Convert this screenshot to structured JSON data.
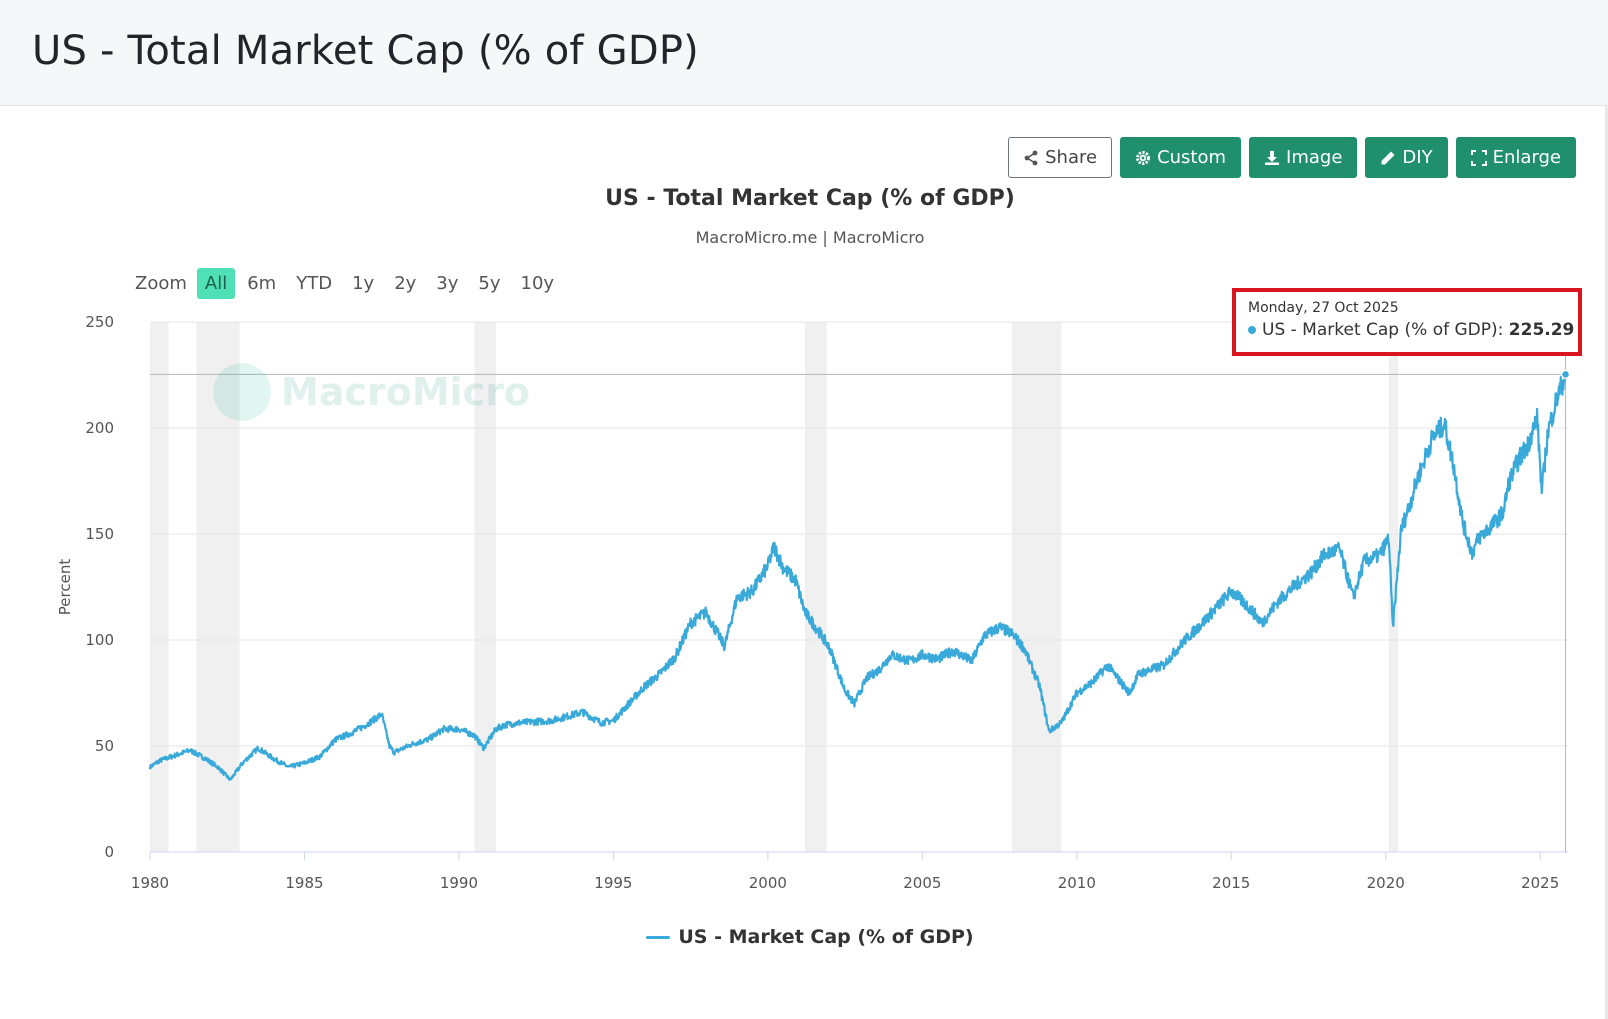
{
  "header": {
    "title": "US - Total Market Cap (% of GDP)"
  },
  "toolbar": {
    "share": {
      "label": "Share",
      "icon": "share-icon"
    },
    "custom": {
      "label": "Custom",
      "icon": "gear-icon"
    },
    "image": {
      "label": "Image",
      "icon": "download-icon"
    },
    "diy": {
      "label": "DIY",
      "icon": "pencil-icon"
    },
    "enlarge": {
      "label": "Enlarge",
      "icon": "expand-icon"
    }
  },
  "zoom": {
    "label": "Zoom",
    "options": [
      "All",
      "6m",
      "YTD",
      "1y",
      "2y",
      "3y",
      "5y",
      "10y"
    ],
    "active": "All"
  },
  "watermark": {
    "text": "MacroMicro"
  },
  "tooltip": {
    "date": "Monday, 27 Oct 2025",
    "series": "US - Market Cap (% of GDP)",
    "value": "225.29"
  },
  "colors": {
    "series": "#38a9d8",
    "recession": "#f0f0f0",
    "accent": "#1f8f6c",
    "highlight": "#d9161d"
  },
  "chart_data": {
    "type": "line",
    "title": "US - Total Market Cap (% of GDP)",
    "subtitle": "MacroMicro.me | MacroMicro",
    "ylabel": "Percent",
    "xlabel": "",
    "ylim": [
      0,
      250
    ],
    "yticks": [
      0,
      50,
      100,
      150,
      200,
      250
    ],
    "xlim": [
      1980.0,
      2025.9
    ],
    "xticks": [
      1980,
      1985,
      1990,
      1995,
      2000,
      2005,
      2010,
      2015,
      2020,
      2025
    ],
    "grid": true,
    "legend_position": "bottom",
    "recessions": [
      [
        1980.0,
        1980.6
      ],
      [
        1981.5,
        1982.9
      ],
      [
        1990.5,
        1991.2
      ],
      [
        2001.2,
        2001.9
      ],
      [
        2007.9,
        2009.5
      ],
      [
        2020.1,
        2020.4
      ]
    ],
    "series": [
      {
        "name": "US - Market Cap (% of GDP)",
        "x": [
          1980.0,
          1980.3,
          1980.9,
          1981.3,
          1981.8,
          1982.2,
          1982.6,
          1983.0,
          1983.5,
          1984.0,
          1984.5,
          1985.0,
          1985.5,
          1986.0,
          1986.5,
          1987.0,
          1987.5,
          1987.75,
          1987.9,
          1988.5,
          1989.0,
          1989.5,
          1990.0,
          1990.5,
          1990.8,
          1991.2,
          1991.5,
          1992.0,
          1993.0,
          1994.0,
          1994.6,
          1995.0,
          1995.5,
          1996.0,
          1996.5,
          1997.0,
          1997.5,
          1998.0,
          1998.6,
          1999.0,
          1999.5,
          2000.0,
          2000.2,
          2000.5,
          2000.9,
          2001.2,
          2001.7,
          2002.0,
          2002.5,
          2002.8,
          2003.2,
          2003.6,
          2004.0,
          2004.6,
          2005.0,
          2005.5,
          2006.0,
          2006.6,
          2007.0,
          2007.5,
          2007.9,
          2008.3,
          2008.8,
          2009.1,
          2009.5,
          2010.0,
          2010.5,
          2011.0,
          2011.7,
          2012.0,
          2012.8,
          2013.5,
          2014.0,
          2014.5,
          2015.0,
          2015.6,
          2016.0,
          2016.5,
          2017.0,
          2017.6,
          2018.0,
          2018.5,
          2018.95,
          2019.3,
          2019.8,
          2020.1,
          2020.23,
          2020.5,
          2020.8,
          2021.0,
          2021.5,
          2021.9,
          2022.2,
          2022.5,
          2022.8,
          2023.0,
          2023.5,
          2023.8,
          2024.0,
          2024.3,
          2024.6,
          2024.9,
          2025.05,
          2025.25,
          2025.5,
          2025.82
        ],
        "values": [
          40,
          43,
          46,
          48,
          44,
          40,
          34,
          42,
          49,
          44,
          40,
          42,
          45,
          53,
          56,
          60,
          65,
          50,
          47,
          51,
          53,
          58,
          58,
          55,
          49,
          58,
          60,
          61,
          62,
          66,
          61,
          62,
          70,
          78,
          84,
          92,
          108,
          113,
          97,
          120,
          123,
          135,
          144,
          134,
          128,
          113,
          103,
          96,
          76,
          70,
          82,
          86,
          93,
          90,
          93,
          91,
          95,
          90,
          102,
          106,
          103,
          96,
          78,
          57,
          61,
          75,
          80,
          88,
          75,
          84,
          88,
          100,
          107,
          115,
          123,
          115,
          108,
          118,
          125,
          132,
          140,
          143,
          120,
          137,
          140,
          148,
          106,
          152,
          165,
          175,
          195,
          202,
          182,
          155,
          141,
          148,
          155,
          160,
          175,
          185,
          192,
          205,
          170,
          198,
          212,
          225.29
        ]
      }
    ]
  }
}
